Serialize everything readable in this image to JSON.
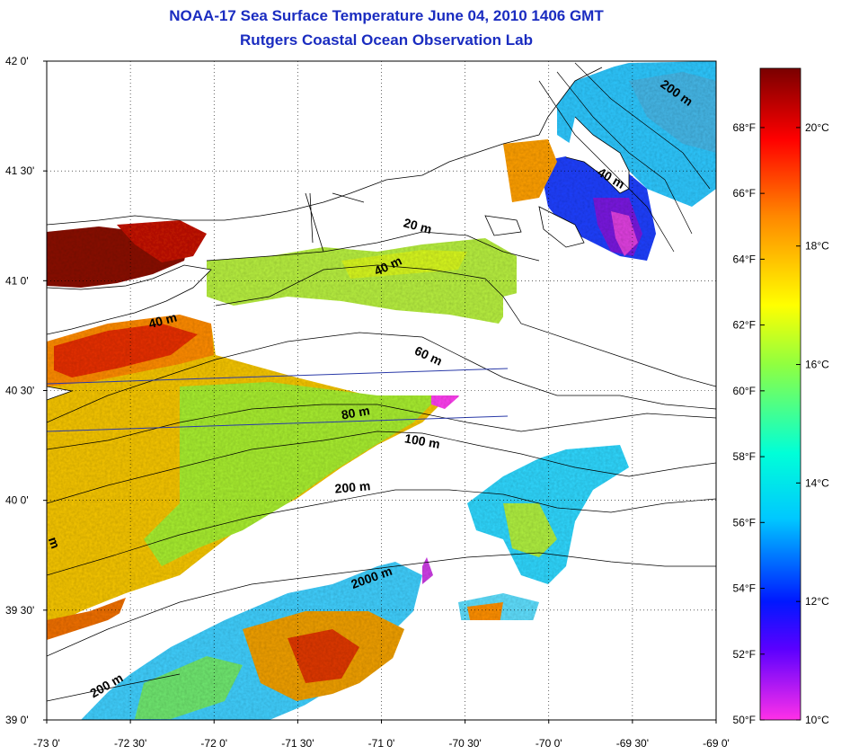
{
  "header": {
    "title": "NOAA-17 Sea Surface Temperature June 04, 2010 1406 GMT",
    "subtitle": "Rutgers Coastal Ocean Observation Lab"
  },
  "map": {
    "lon_range": [
      -73.0,
      -69.0
    ],
    "lat_range": [
      39.0,
      42.0
    ],
    "grid": "dotted",
    "lon_ticks": [
      {
        "value": -73.0,
        "label": "-73 0'"
      },
      {
        "value": -72.5,
        "label": "-72 30'"
      },
      {
        "value": -72.0,
        "label": "-72 0'"
      },
      {
        "value": -71.5,
        "label": "-71 30'"
      },
      {
        "value": -71.0,
        "label": "-71 0'"
      },
      {
        "value": -70.5,
        "label": "-70 30'"
      },
      {
        "value": -70.0,
        "label": "-70 0'"
      },
      {
        "value": -69.5,
        "label": "-69 30'"
      },
      {
        "value": -69.0,
        "label": "-69 0'"
      }
    ],
    "lat_ticks": [
      {
        "value": 42.0,
        "label": "42 0'"
      },
      {
        "value": 41.5,
        "label": "41 30'"
      },
      {
        "value": 41.0,
        "label": "41 0'"
      },
      {
        "value": 40.5,
        "label": "40 30'"
      },
      {
        "value": 40.0,
        "label": "40 0'"
      },
      {
        "value": 39.5,
        "label": "39 30'"
      },
      {
        "value": 39.0,
        "label": "39 0'"
      }
    ],
    "depth_labels": [
      {
        "text": "200 m",
        "lon": -69.25,
        "lat": 41.84
      },
      {
        "text": "40 m",
        "lon": -69.64,
        "lat": 41.45
      },
      {
        "text": "20 m",
        "lon": -70.79,
        "lat": 41.23
      },
      {
        "text": "40 m",
        "lon": -70.95,
        "lat": 41.05
      },
      {
        "text": "40 m",
        "lon": -72.3,
        "lat": 40.8
      },
      {
        "text": "60 m",
        "lon": -70.73,
        "lat": 40.64
      },
      {
        "text": "80 m",
        "lon": -71.15,
        "lat": 40.38
      },
      {
        "text": "100 m",
        "lon": -70.76,
        "lat": 40.25
      },
      {
        "text": "200 m",
        "lon": -71.17,
        "lat": 40.04
      },
      {
        "text": "2000 m",
        "lon": -71.05,
        "lat": 39.63
      },
      {
        "text": "200 m",
        "lon": -72.63,
        "lat": 39.14
      },
      {
        "text": "m",
        "lon": -72.98,
        "lat": 39.8
      }
    ],
    "colors": {
      "land": "#ffffff",
      "coast": "#000000",
      "contour": "#000000",
      "transect": "#2a3aa8"
    }
  },
  "colorbar": {
    "range_c": [
      10,
      21
    ],
    "fahrenheit_labels": [
      "50°F",
      "52°F",
      "54°F",
      "56°F",
      "58°F",
      "60°F",
      "62°F",
      "64°F",
      "66°F",
      "68°F"
    ],
    "celsius_labels": [
      "10°C",
      "12°C",
      "14°C",
      "16°C",
      "18°C",
      "20°C"
    ],
    "stops": [
      {
        "c": 10.0,
        "color": "#ff30e8"
      },
      {
        "c": 11.2,
        "color": "#5a00ff"
      },
      {
        "c": 12.0,
        "color": "#0018ff"
      },
      {
        "c": 13.4,
        "color": "#00c8ff"
      },
      {
        "c": 14.5,
        "color": "#00ffd8"
      },
      {
        "c": 16.0,
        "color": "#90ff40"
      },
      {
        "c": 17.0,
        "color": "#ffff00"
      },
      {
        "c": 18.5,
        "color": "#ff8800"
      },
      {
        "c": 19.8,
        "color": "#ff0000"
      },
      {
        "c": 21.0,
        "color": "#7a0000"
      }
    ]
  }
}
